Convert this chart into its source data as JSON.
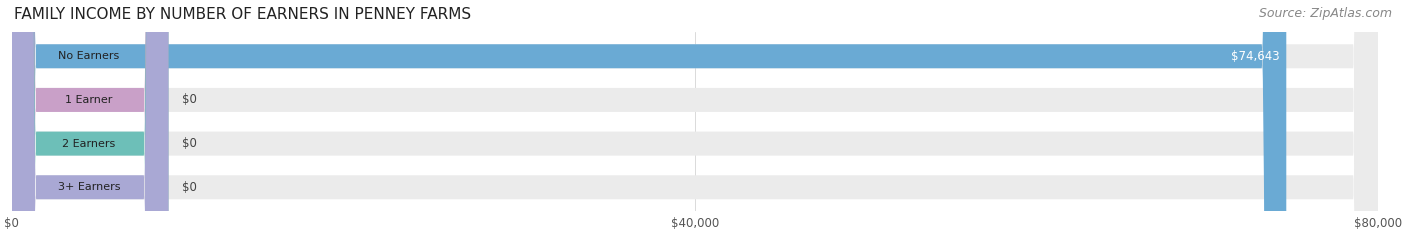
{
  "title": "FAMILY INCOME BY NUMBER OF EARNERS IN PENNEY FARMS",
  "source": "Source: ZipAtlas.com",
  "categories": [
    "No Earners",
    "1 Earner",
    "2 Earners",
    "3+ Earners"
  ],
  "values": [
    74643,
    0,
    0,
    0
  ],
  "max_value": 80000,
  "x_ticks": [
    0,
    40000,
    80000
  ],
  "x_tick_labels": [
    "$0",
    "$40,000",
    "$80,000"
  ],
  "bar_colors": [
    "#6aaad4",
    "#c9a0c8",
    "#6dbfb8",
    "#a9a8d4"
  ],
  "label_bg_colors": [
    "#6aaad4",
    "#c9a0c8",
    "#6dbfb8",
    "#a9a8d4"
  ],
  "bar_bg_color": "#ebebeb",
  "value_labels": [
    "$74,643",
    "$0",
    "$0",
    "$0"
  ],
  "background_color": "#ffffff",
  "title_fontsize": 11,
  "source_fontsize": 9,
  "bar_height": 0.55,
  "bar_gap": 0.3
}
